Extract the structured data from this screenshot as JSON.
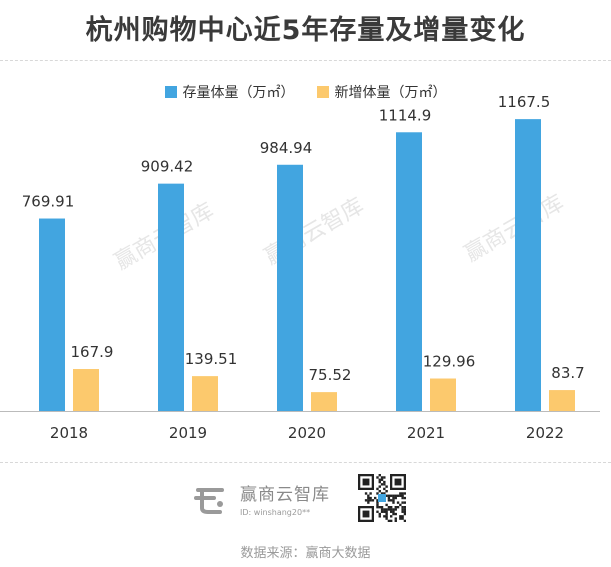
{
  "title": "杭州购物中心近5年存量及增量变化",
  "colors": {
    "stock": "#42a5e0",
    "new": "#fcc96d",
    "axis": "#bbbbbb"
  },
  "watermark": "赢商云智库",
  "brand": {
    "name": "赢商云智库",
    "id_text": "ID: winshang20**"
  },
  "source": "数据来源：赢商大数据",
  "chart_data": {
    "type": "bar",
    "title": "杭州购物中心近5年存量及增量变化",
    "categories": [
      "2018",
      "2019",
      "2020",
      "2021",
      "2022"
    ],
    "series": [
      {
        "name": "存量体量（万㎡）",
        "values": [
          769.91,
          909.42,
          984.94,
          1114.9,
          1167.5
        ],
        "labels": [
          "769.91",
          "909.42",
          "984.94",
          "1114.9",
          "1167.5"
        ]
      },
      {
        "name": "新增体量（万㎡）",
        "values": [
          167.9,
          139.51,
          75.52,
          129.96,
          83.7
        ],
        "labels": [
          "167.9",
          "139.51",
          "75.52",
          "129.96",
          "83.7"
        ]
      }
    ],
    "ylim": [
      0,
      1200
    ],
    "grid": false,
    "legend_position": "top-center"
  }
}
